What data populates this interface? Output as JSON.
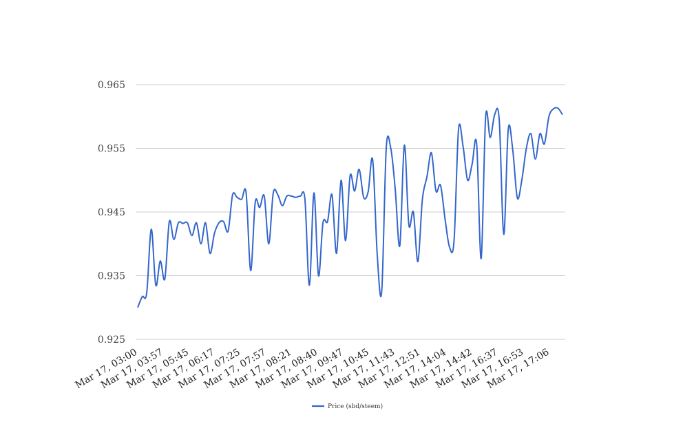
{
  "chart_data": {
    "type": "line",
    "title": "",
    "xlabel": "",
    "ylabel": "",
    "ylim": [
      0.925,
      0.965
    ],
    "yticks": [
      "0.925",
      "0.935",
      "0.945",
      "0.955",
      "0.965"
    ],
    "xticks": [
      "Mar 17, 03:00",
      "Mar 17, 03:57",
      "Mar 17, 05:45",
      "Mar 17, 06:17",
      "Mar 17, 07:25",
      "Mar 17, 07:57",
      "Mar 17, 08:21",
      "Mar 17, 08:40",
      "Mar 17, 09:47",
      "Mar 17, 10:45",
      "Mar 17, 11:43",
      "Mar 17, 12:51",
      "Mar 17, 14:04",
      "Mar 17, 14:42",
      "Mar 17, 16:37",
      "Mar 17, 16:53",
      "Mar 17, 17:06"
    ],
    "grid": true,
    "legend_position": "bottom",
    "series": [
      {
        "name": "Price (sbd/steem)",
        "color": "#3366cc",
        "values": [
          0.93,
          0.9317,
          0.9323,
          0.9423,
          0.9335,
          0.9373,
          0.9345,
          0.9435,
          0.9407,
          0.9433,
          0.9432,
          0.9433,
          0.9413,
          0.9433,
          0.94,
          0.9433,
          0.9385,
          0.9417,
          0.9433,
          0.9435,
          0.942,
          0.9477,
          0.9473,
          0.947,
          0.948,
          0.9358,
          0.9465,
          0.9457,
          0.9475,
          0.94,
          0.948,
          0.9477,
          0.946,
          0.9475,
          0.9475,
          0.9473,
          0.9475,
          0.947,
          0.9335,
          0.948,
          0.935,
          0.9433,
          0.9435,
          0.9477,
          0.9385,
          0.95,
          0.9405,
          0.9507,
          0.9483,
          0.9517,
          0.9473,
          0.9482,
          0.9532,
          0.9383,
          0.9325,
          0.955,
          0.955,
          0.9485,
          0.9397,
          0.9555,
          0.943,
          0.945,
          0.9372,
          0.947,
          0.9505,
          0.9543,
          0.9483,
          0.9492,
          0.944,
          0.9395,
          0.9405,
          0.958,
          0.9553,
          0.95,
          0.9525,
          0.9557,
          0.9377,
          0.96,
          0.9567,
          0.9603,
          0.9595,
          0.9415,
          0.958,
          0.9547,
          0.9472,
          0.95,
          0.955,
          0.9573,
          0.9533,
          0.9573,
          0.9557,
          0.96,
          0.9612,
          0.9613,
          0.9603
        ]
      }
    ]
  }
}
